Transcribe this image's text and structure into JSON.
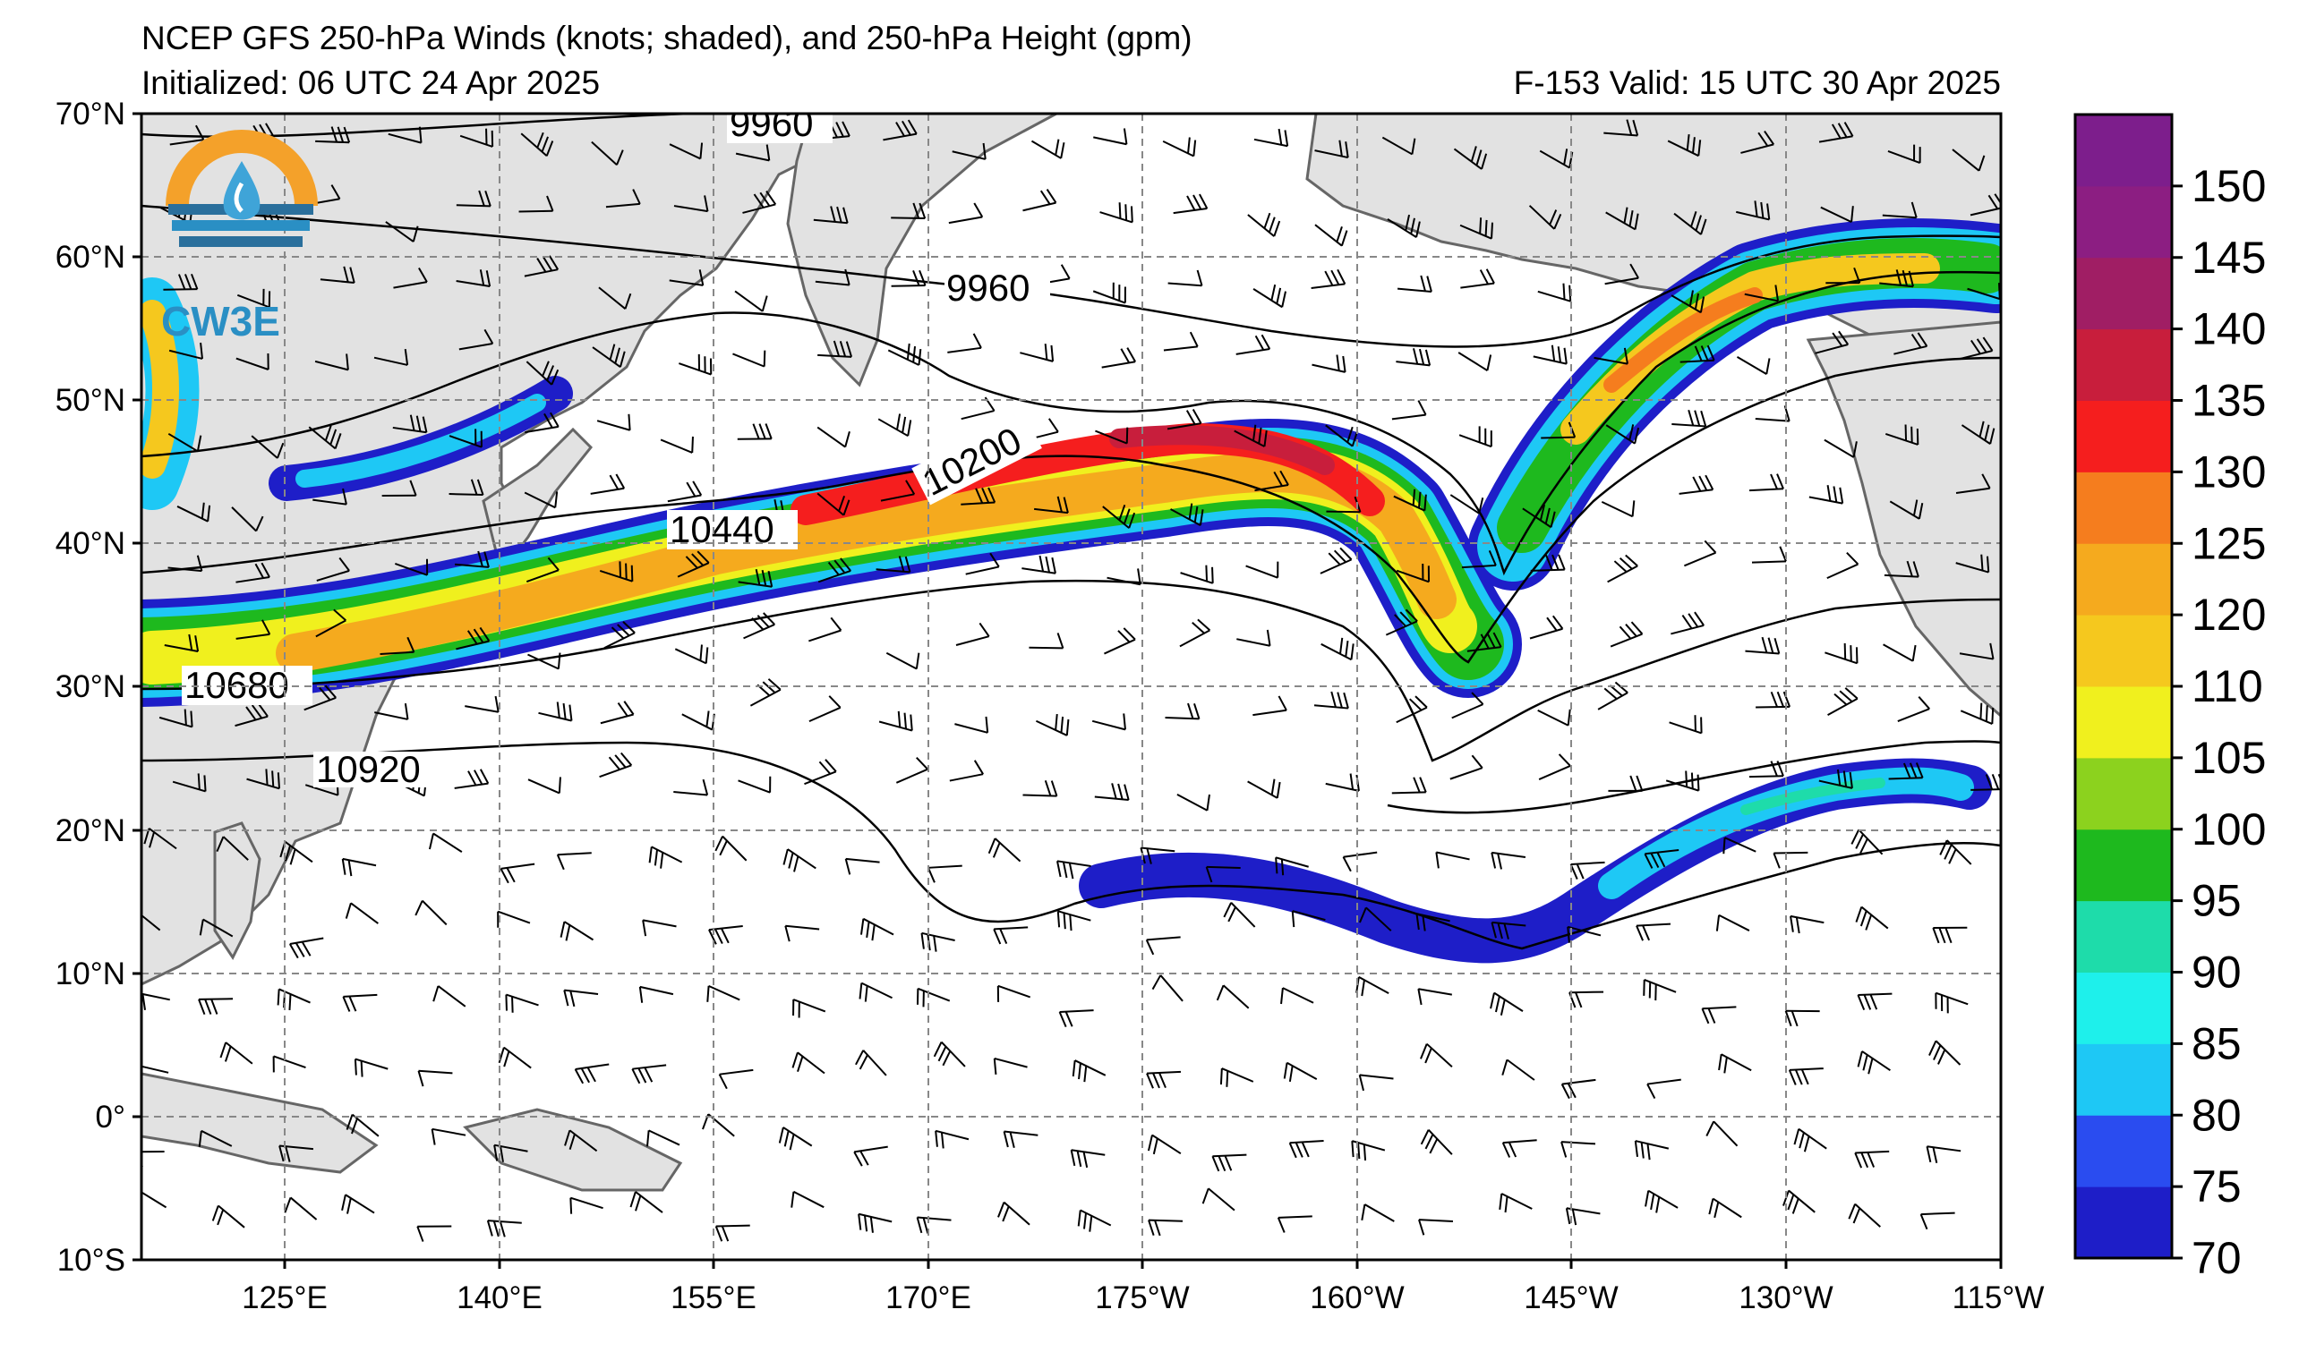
{
  "header": {
    "title": "NCEP GFS 250-hPa Winds (knots; shaded), and 250-hPa Height (gpm)",
    "initialized": "Initialized: 06 UTC 24 Apr 2025",
    "valid": "F-153  Valid: 15 UTC 30 Apr 2025"
  },
  "logo": {
    "text": "CW3E",
    "icon": "cw3e-water-drop-logo-icon"
  },
  "axes": {
    "lat_labels": [
      "70°N",
      "60°N",
      "50°N",
      "40°N",
      "30°N",
      "20°N",
      "10°N",
      "0°",
      "10°S"
    ],
    "lon_labels": [
      "125°E",
      "140°E",
      "155°E",
      "170°E",
      "175°W",
      "160°W",
      "145°W",
      "130°W",
      "115°W"
    ],
    "lat_range": [
      -10,
      70
    ],
    "lon_range": [
      115,
      245
    ],
    "grid": true
  },
  "colorbar": {
    "ticks": [
      "150",
      "145",
      "140",
      "135",
      "130",
      "125",
      "120",
      "110",
      "105",
      "100",
      "95",
      "90",
      "85",
      "80",
      "75",
      "70"
    ],
    "colors": [
      "#1e1ec8",
      "#2a4cf0",
      "#1ec8f5",
      "#1ef0eb",
      "#1edcaa",
      "#1eb91e",
      "#8cd21e",
      "#f0f01e",
      "#f5c81e",
      "#f5aa1e",
      "#f57d1e",
      "#f51e1e",
      "#c81e3c",
      "#a01e64",
      "#8c1e82",
      "#7d1e8c"
    ],
    "units": "knots"
  },
  "contours": {
    "labels": [
      "9960",
      "9960",
      "10200",
      "10440",
      "10680",
      "10920"
    ]
  }
}
